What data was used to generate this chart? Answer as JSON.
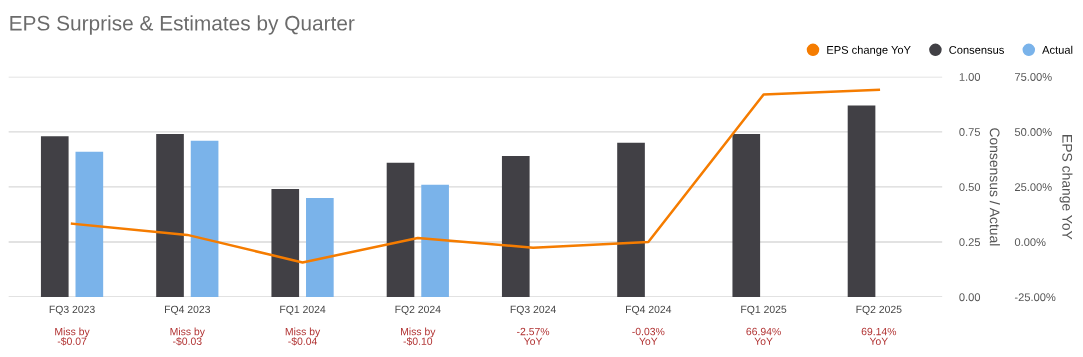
{
  "chart_data": {
    "type": "bar",
    "title": "EPS Surprise & Estimates by Quarter",
    "categories": [
      "FQ3 2023",
      "FQ4 2023",
      "FQ1 2024",
      "FQ2 2024",
      "FQ3 2024",
      "FQ4 2024",
      "FQ1 2025",
      "FQ2 2025"
    ],
    "series": [
      {
        "name": "EPS change YoY",
        "type": "line",
        "axis": "y2",
        "color": "#f57c00",
        "values": [
          8.3,
          3.2,
          -9.3,
          1.8,
          -2.6,
          0.0,
          66.9,
          69.1
        ]
      },
      {
        "name": "Consensus",
        "color": "#414045",
        "values": [
          0.73,
          0.74,
          0.49,
          0.61,
          0.64,
          0.7,
          0.74,
          0.87
        ]
      },
      {
        "name": "Actual",
        "color": "#7ab3ea",
        "values": [
          0.66,
          0.71,
          0.45,
          0.51,
          null,
          null,
          null,
          null
        ]
      }
    ],
    "ylabel": "Consensus / Actual",
    "y2label": "EPS change YoY",
    "ylim": [
      0,
      1
    ],
    "yticks": [
      {
        "value": 0,
        "label": "0.00"
      },
      {
        "value": 0.25,
        "label": "0.25"
      },
      {
        "value": 0.5,
        "label": "0.50"
      },
      {
        "value": 0.75,
        "label": "0.75"
      },
      {
        "value": 1,
        "label": "1.00"
      }
    ],
    "y2lim": [
      -25,
      75
    ],
    "y2ticks": [
      {
        "value": -25,
        "label": "-25.00%"
      },
      {
        "value": 0,
        "label": "0.00%"
      },
      {
        "value": 25,
        "label": "25.00%"
      },
      {
        "value": 50,
        "label": "50.00%"
      },
      {
        "value": 75,
        "label": "75.00%"
      }
    ],
    "annotations": [
      "Miss by\n-$0.07",
      "Miss by\n-$0.03",
      "Miss by\n-$0.04",
      "Miss by\n-$0.10",
      "-2.57%\nYoY",
      "-0.03%\nYoY",
      "66.94%\nYoY",
      "69.14%\nYoY"
    ],
    "grid": "y",
    "legend": "top right"
  }
}
